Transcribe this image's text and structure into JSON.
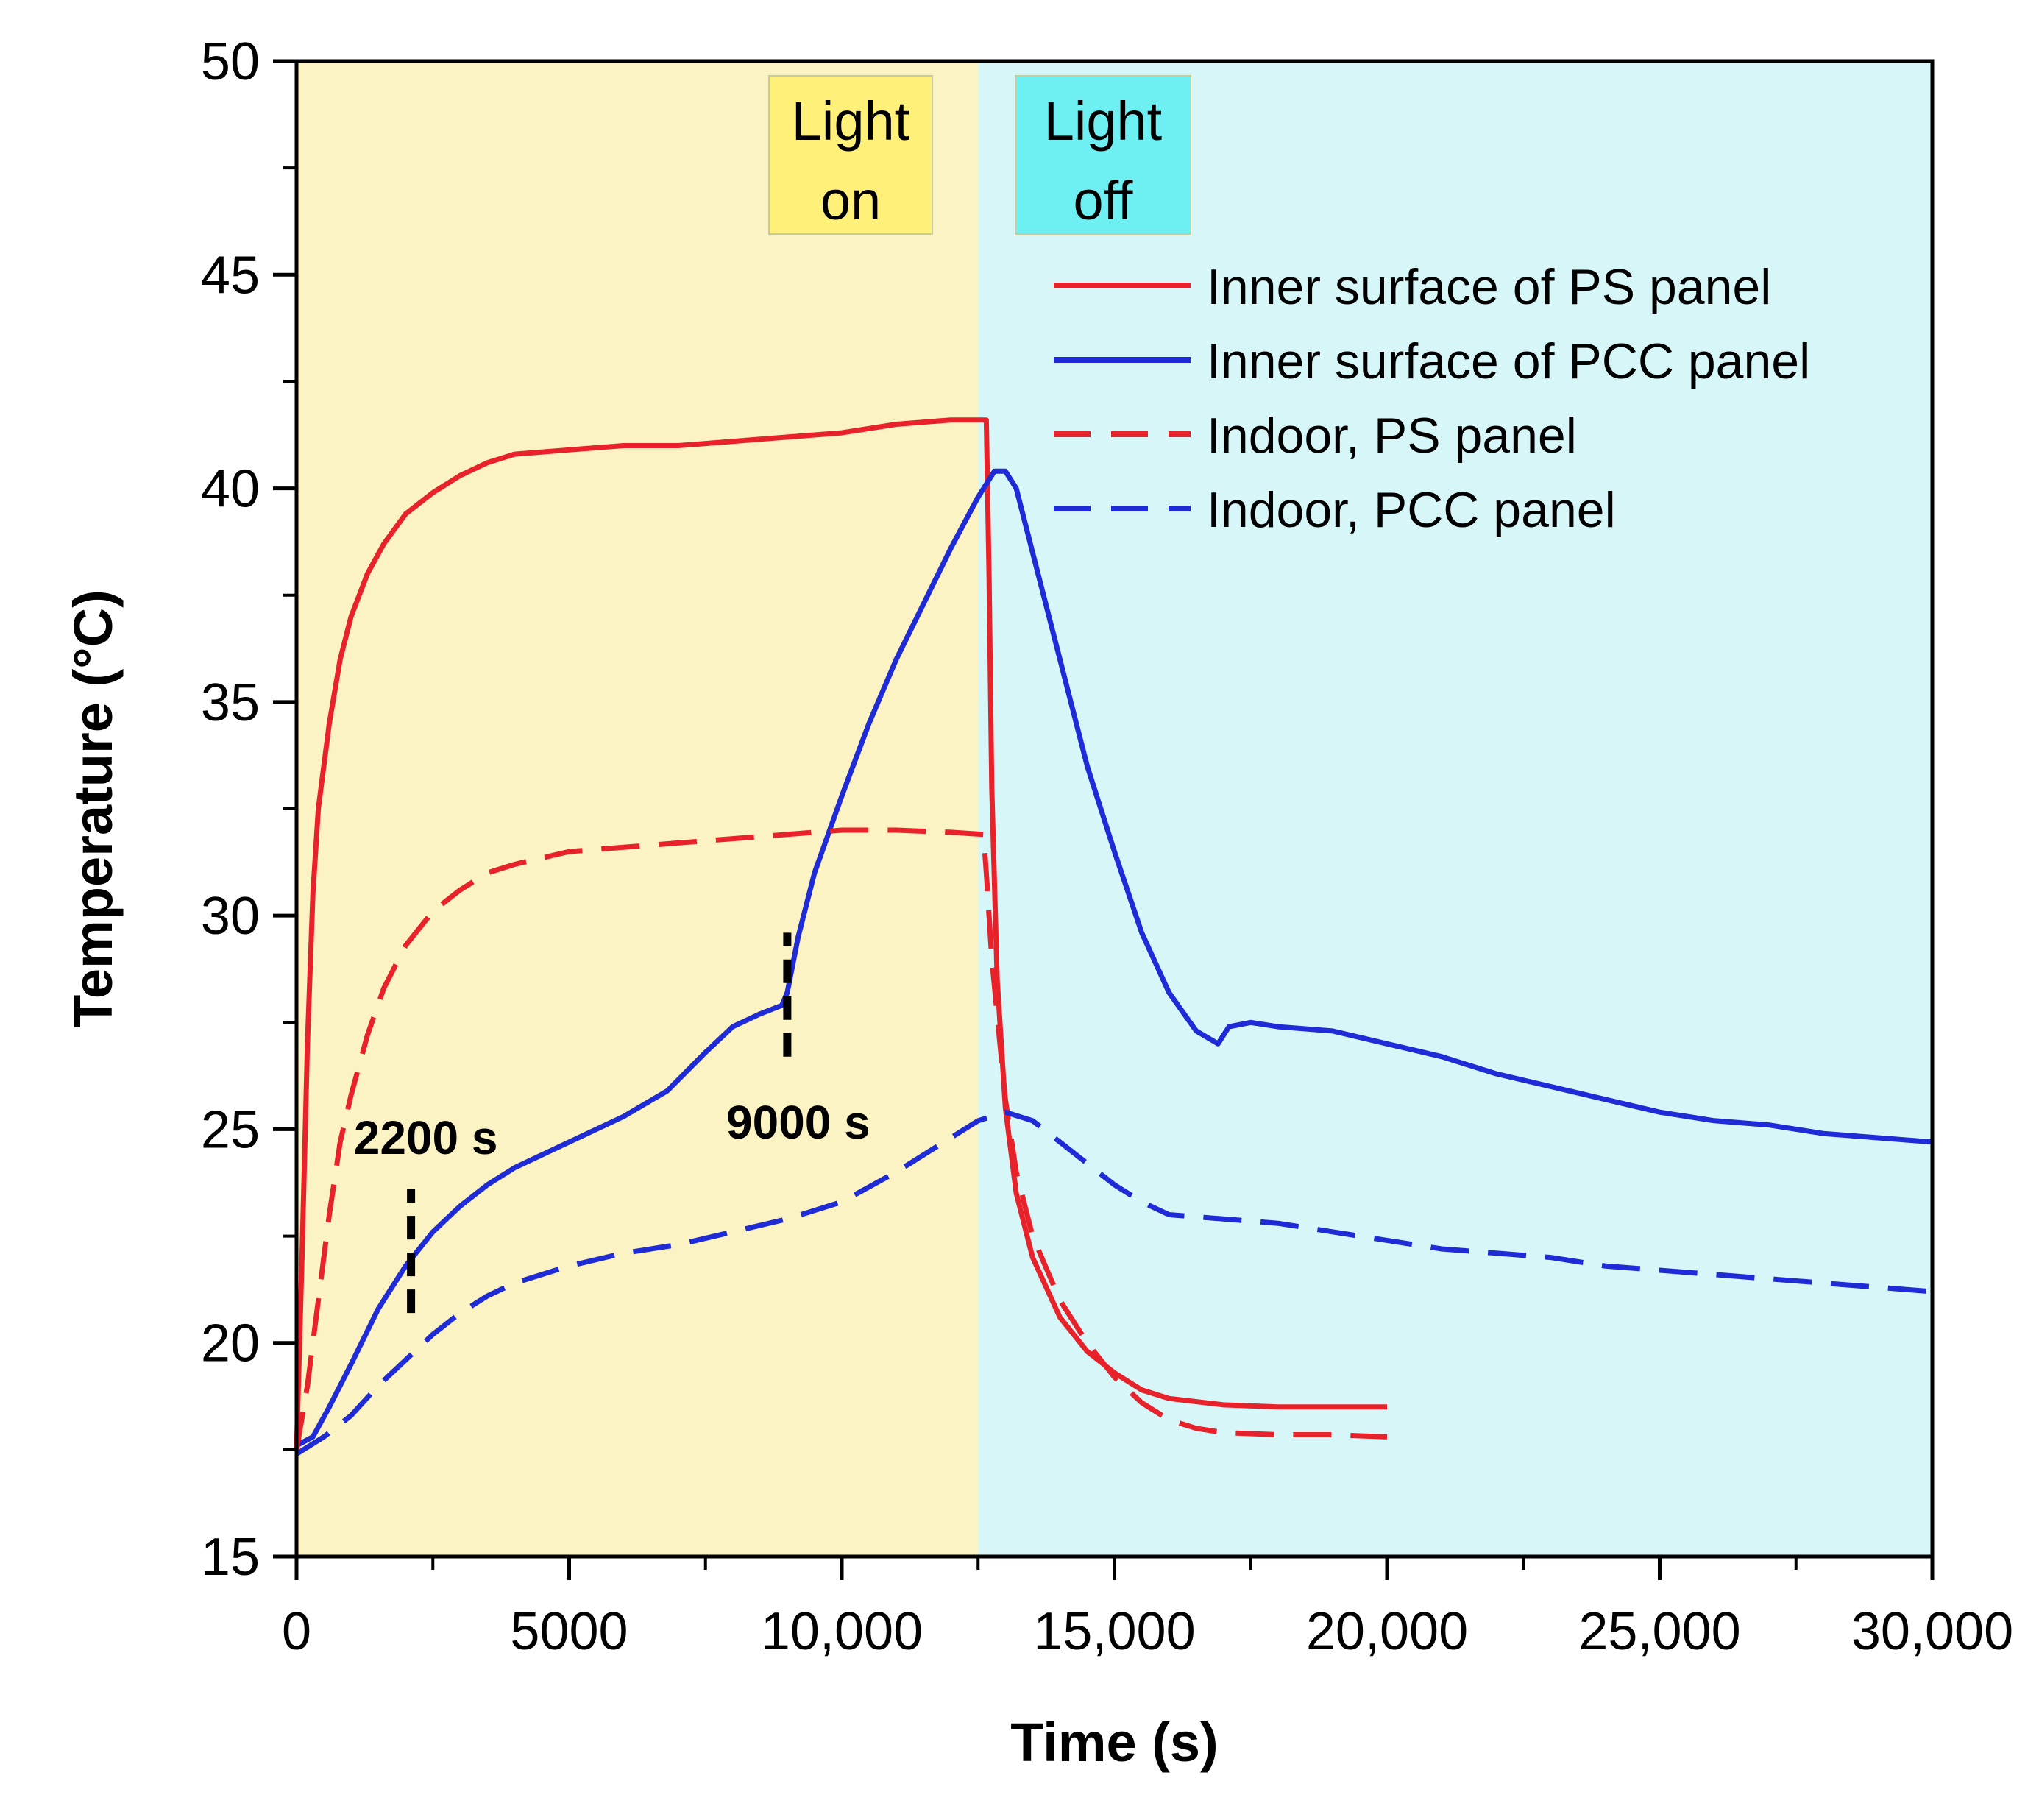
{
  "chart_data": {
    "type": "line",
    "title": "",
    "xlabel": "Time (s)",
    "ylabel": "Temperature (°C)",
    "xlim": [
      0,
      30000
    ],
    "ylim": [
      15,
      50
    ],
    "xticks": [
      0,
      5000,
      10000,
      15000,
      20000,
      25000,
      30000
    ],
    "xtick_labels": [
      "0",
      "5000",
      "10,000",
      "15,000",
      "20,000",
      "25,000",
      "30,000"
    ],
    "yticks": [
      15,
      20,
      25,
      30,
      35,
      40,
      45,
      50
    ],
    "ytick_labels": [
      "15",
      "20",
      "25",
      "30",
      "35",
      "40",
      "45",
      "50"
    ],
    "grid": false,
    "legend_position": "top-right",
    "regions": [
      {
        "name": "light-on",
        "label_line1": "Light",
        "label_line2": "on",
        "x_start": 0,
        "x_end": 12500,
        "color": "#fbf3c4",
        "label_color": "#fff07a"
      },
      {
        "name": "light-off",
        "label_line1": "Light",
        "label_line2": "off",
        "x_start": 12500,
        "x_end": 30000,
        "color": "#d6f6f8",
        "label_color": "#6ef0f2"
      }
    ],
    "annotations": [
      {
        "name": "2200s",
        "text": "2200 s",
        "x": 2100,
        "y_from": 20.7,
        "y_to": 23.6
      },
      {
        "name": "9000s",
        "text": "9000 s",
        "x": 9000,
        "y_from": 26.7,
        "y_to": 29.6
      }
    ],
    "series": [
      {
        "name": "Inner surface of PS panel",
        "color": "#e8222a",
        "dash": "solid",
        "points": [
          [
            0,
            17.5
          ],
          [
            100,
            22
          ],
          [
            200,
            27
          ],
          [
            300,
            30.5
          ],
          [
            400,
            32.5
          ],
          [
            600,
            34.5
          ],
          [
            800,
            36
          ],
          [
            1000,
            37
          ],
          [
            1300,
            38
          ],
          [
            1600,
            38.7
          ],
          [
            2000,
            39.4
          ],
          [
            2500,
            39.9
          ],
          [
            3000,
            40.3
          ],
          [
            3500,
            40.6
          ],
          [
            4000,
            40.8
          ],
          [
            5000,
            40.9
          ],
          [
            6000,
            41.0
          ],
          [
            7000,
            41.0
          ],
          [
            8000,
            41.1
          ],
          [
            9000,
            41.2
          ],
          [
            10000,
            41.3
          ],
          [
            11000,
            41.5
          ],
          [
            12000,
            41.6
          ],
          [
            12650,
            41.6
          ],
          [
            12700,
            38
          ],
          [
            12750,
            33
          ],
          [
            12850,
            28.5
          ],
          [
            13000,
            25.5
          ],
          [
            13200,
            23.5
          ],
          [
            13500,
            22
          ],
          [
            14000,
            20.6
          ],
          [
            14500,
            19.8
          ],
          [
            15000,
            19.3
          ],
          [
            15500,
            18.9
          ],
          [
            16000,
            18.7
          ],
          [
            17000,
            18.55
          ],
          [
            18000,
            18.5
          ],
          [
            19000,
            18.5
          ],
          [
            20000,
            18.5
          ]
        ]
      },
      {
        "name": "Inner surface of PCC panel",
        "color": "#1f2bd6",
        "dash": "solid",
        "points": [
          [
            0,
            17.6
          ],
          [
            300,
            17.8
          ],
          [
            600,
            18.5
          ],
          [
            1000,
            19.5
          ],
          [
            1500,
            20.8
          ],
          [
            2000,
            21.8
          ],
          [
            2500,
            22.6
          ],
          [
            3000,
            23.2
          ],
          [
            3500,
            23.7
          ],
          [
            4000,
            24.1
          ],
          [
            5000,
            24.7
          ],
          [
            6000,
            25.3
          ],
          [
            6800,
            25.9
          ],
          [
            7500,
            26.8
          ],
          [
            8000,
            27.4
          ],
          [
            8500,
            27.7
          ],
          [
            8900,
            27.9
          ],
          [
            9000,
            28.2
          ],
          [
            9200,
            29.5
          ],
          [
            9500,
            31
          ],
          [
            10000,
            32.8
          ],
          [
            10500,
            34.5
          ],
          [
            11000,
            36
          ],
          [
            11500,
            37.3
          ],
          [
            12000,
            38.6
          ],
          [
            12500,
            39.8
          ],
          [
            12800,
            40.4
          ],
          [
            13000,
            40.4
          ],
          [
            13200,
            40
          ],
          [
            13500,
            38.5
          ],
          [
            14000,
            36
          ],
          [
            14500,
            33.5
          ],
          [
            15000,
            31.5
          ],
          [
            15500,
            29.6
          ],
          [
            16000,
            28.2
          ],
          [
            16500,
            27.3
          ],
          [
            16900,
            27
          ],
          [
            17100,
            27.4
          ],
          [
            17500,
            27.5
          ],
          [
            18000,
            27.4
          ],
          [
            19000,
            27.3
          ],
          [
            20000,
            27
          ],
          [
            21000,
            26.7
          ],
          [
            22000,
            26.3
          ],
          [
            23000,
            26
          ],
          [
            24000,
            25.7
          ],
          [
            25000,
            25.4
          ],
          [
            26000,
            25.2
          ],
          [
            27000,
            25.1
          ],
          [
            28000,
            24.9
          ],
          [
            29000,
            24.8
          ],
          [
            30000,
            24.7
          ]
        ]
      },
      {
        "name": "Indoor, PS panel",
        "color": "#e8222a",
        "dash": "dashed",
        "points": [
          [
            0,
            17.5
          ],
          [
            200,
            19
          ],
          [
            400,
            21
          ],
          [
            600,
            23
          ],
          [
            800,
            24.7
          ],
          [
            1000,
            25.8
          ],
          [
            1300,
            27.2
          ],
          [
            1600,
            28.3
          ],
          [
            2000,
            29.3
          ],
          [
            2500,
            30.1
          ],
          [
            3000,
            30.6
          ],
          [
            3500,
            31
          ],
          [
            4000,
            31.2
          ],
          [
            5000,
            31.5
          ],
          [
            6000,
            31.6
          ],
          [
            7000,
            31.7
          ],
          [
            8000,
            31.8
          ],
          [
            9000,
            31.9
          ],
          [
            10000,
            32
          ],
          [
            11000,
            32
          ],
          [
            12000,
            31.95
          ],
          [
            12600,
            31.9
          ],
          [
            12650,
            31
          ],
          [
            12750,
            29
          ],
          [
            12900,
            27
          ],
          [
            13000,
            25.7
          ],
          [
            13200,
            24
          ],
          [
            13500,
            22.5
          ],
          [
            14000,
            21
          ],
          [
            14500,
            20
          ],
          [
            15000,
            19.2
          ],
          [
            15500,
            18.6
          ],
          [
            16000,
            18.2
          ],
          [
            16500,
            18
          ],
          [
            17000,
            17.9
          ],
          [
            18000,
            17.85
          ],
          [
            19000,
            17.85
          ],
          [
            20000,
            17.8
          ]
        ]
      },
      {
        "name": "Indoor, PCC panel",
        "color": "#1f2bd6",
        "dash": "dashed",
        "points": [
          [
            0,
            17.4
          ],
          [
            500,
            17.8
          ],
          [
            1000,
            18.3
          ],
          [
            1500,
            19
          ],
          [
            2000,
            19.6
          ],
          [
            2500,
            20.2
          ],
          [
            3000,
            20.7
          ],
          [
            3500,
            21.1
          ],
          [
            4000,
            21.4
          ],
          [
            5000,
            21.8
          ],
          [
            6000,
            22.1
          ],
          [
            7000,
            22.3
          ],
          [
            8000,
            22.6
          ],
          [
            9000,
            22.9
          ],
          [
            10000,
            23.3
          ],
          [
            11000,
            24
          ],
          [
            12000,
            24.8
          ],
          [
            12500,
            25.2
          ],
          [
            13000,
            25.4
          ],
          [
            13500,
            25.2
          ],
          [
            14000,
            24.7
          ],
          [
            14500,
            24.2
          ],
          [
            15000,
            23.7
          ],
          [
            15500,
            23.3
          ],
          [
            16000,
            23
          ],
          [
            17000,
            22.9
          ],
          [
            18000,
            22.8
          ],
          [
            19000,
            22.6
          ],
          [
            20000,
            22.4
          ],
          [
            21000,
            22.2
          ],
          [
            22000,
            22.1
          ],
          [
            23000,
            22
          ],
          [
            24000,
            21.8
          ],
          [
            25000,
            21.7
          ],
          [
            26000,
            21.6
          ],
          [
            27000,
            21.5
          ],
          [
            28000,
            21.4
          ],
          [
            29000,
            21.3
          ],
          [
            30000,
            21.2
          ]
        ]
      }
    ]
  }
}
